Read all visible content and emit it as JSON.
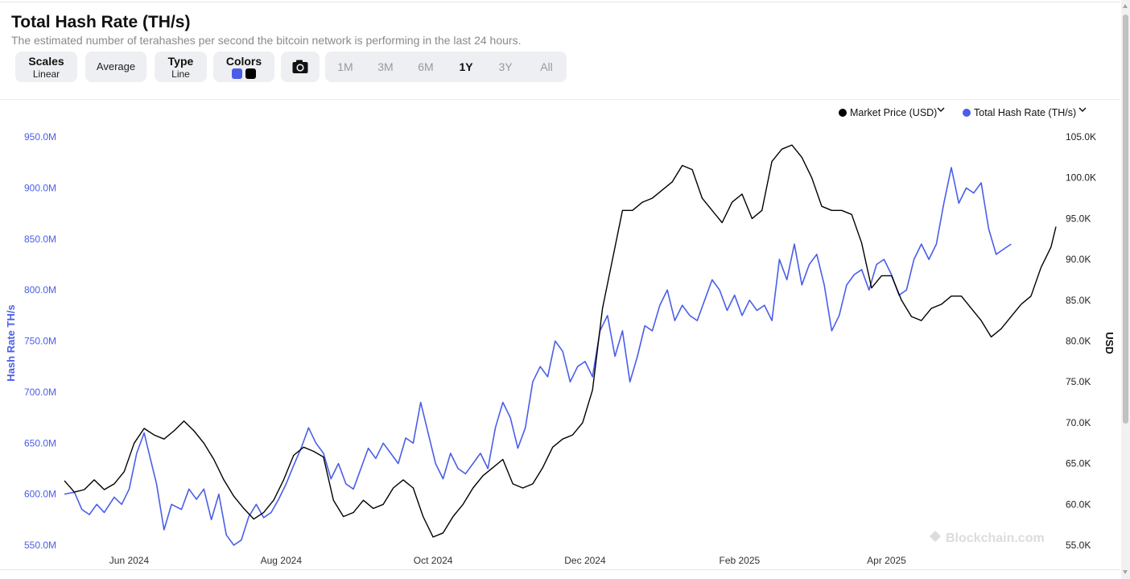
{
  "header": {
    "title": "Total Hash Rate (TH/s)",
    "subtitle": "The estimated number of terahashes per second the bitcoin network is performing in the last 24 hours."
  },
  "controls": {
    "scales_label": "Scales",
    "scales_value": "Linear",
    "average_label": "Average",
    "type_label": "Type",
    "type_value": "Line",
    "colors_label": "Colors",
    "color_swatches": [
      "#4a5ee8",
      "#000000"
    ],
    "camera_icon": "camera-icon",
    "ranges": [
      "1M",
      "3M",
      "6M",
      "1Y",
      "3Y",
      "All"
    ],
    "active_range": "1Y"
  },
  "chart_data": {
    "type": "line",
    "xlabel": "",
    "x_ticks": [
      "Jun 2024",
      "Aug 2024",
      "Oct 2024",
      "Dec 2024",
      "Feb 2025",
      "Apr 2025"
    ],
    "y_left": {
      "label": "Hash Rate TH/s",
      "range": [
        550,
        950
      ],
      "ticks": [
        "550.0M",
        "600.0M",
        "650.0M",
        "700.0M",
        "750.0M",
        "800.0M",
        "850.0M",
        "900.0M",
        "950.0M"
      ],
      "color": "#4a5ee8"
    },
    "y_right": {
      "label": "USD",
      "range": [
        55,
        105
      ],
      "ticks": [
        "55.0K",
        "60.0K",
        "65.0K",
        "70.0K",
        "75.0K",
        "80.0K",
        "85.0K",
        "90.0K",
        "95.0K",
        "100.0K",
        "105.0K"
      ],
      "color": "#000000"
    },
    "legend": {
      "position": "top-right",
      "entries": [
        {
          "name": "Market Price (USD)",
          "color": "#000000"
        },
        {
          "name": "Total Hash Rate (TH/s)",
          "color": "#4a5ee8"
        }
      ]
    },
    "grid": false,
    "watermark": "Blockchain.com",
    "series": [
      {
        "name": "Total Hash Rate (TH/s)",
        "axis": "left",
        "color": "#4a5ee8",
        "points": [
          [
            "2024-05-06",
            600
          ],
          [
            "2024-05-10",
            602
          ],
          [
            "2024-05-13",
            585
          ],
          [
            "2024-05-16",
            580
          ],
          [
            "2024-05-19",
            590
          ],
          [
            "2024-05-22",
            582
          ],
          [
            "2024-05-26",
            597
          ],
          [
            "2024-05-29",
            590
          ],
          [
            "2024-06-01",
            605
          ],
          [
            "2024-06-04",
            640
          ],
          [
            "2024-06-07",
            660
          ],
          [
            "2024-06-09",
            640
          ],
          [
            "2024-06-12",
            610
          ],
          [
            "2024-06-15",
            565
          ],
          [
            "2024-06-18",
            590
          ],
          [
            "2024-06-22",
            585
          ],
          [
            "2024-06-25",
            605
          ],
          [
            "2024-06-28",
            595
          ],
          [
            "2024-07-01",
            605
          ],
          [
            "2024-07-04",
            575
          ],
          [
            "2024-07-07",
            600
          ],
          [
            "2024-07-10",
            560
          ],
          [
            "2024-07-13",
            550
          ],
          [
            "2024-07-16",
            555
          ],
          [
            "2024-07-19",
            578
          ],
          [
            "2024-07-22",
            590
          ],
          [
            "2024-07-25",
            577
          ],
          [
            "2024-07-28",
            582
          ],
          [
            "2024-07-31",
            595
          ],
          [
            "2024-08-03",
            610
          ],
          [
            "2024-08-06",
            628
          ],
          [
            "2024-08-09",
            645
          ],
          [
            "2024-08-12",
            665
          ],
          [
            "2024-08-15",
            650
          ],
          [
            "2024-08-18",
            640
          ],
          [
            "2024-08-21",
            615
          ],
          [
            "2024-08-24",
            630
          ],
          [
            "2024-08-27",
            610
          ],
          [
            "2024-08-30",
            605
          ],
          [
            "2024-09-02",
            625
          ],
          [
            "2024-09-05",
            645
          ],
          [
            "2024-09-08",
            635
          ],
          [
            "2024-09-11",
            650
          ],
          [
            "2024-09-14",
            640
          ],
          [
            "2024-09-17",
            630
          ],
          [
            "2024-09-20",
            655
          ],
          [
            "2024-09-23",
            650
          ],
          [
            "2024-09-26",
            690
          ],
          [
            "2024-09-29",
            660
          ],
          [
            "2024-10-02",
            630
          ],
          [
            "2024-10-05",
            615
          ],
          [
            "2024-10-08",
            640
          ],
          [
            "2024-10-11",
            625
          ],
          [
            "2024-10-14",
            620
          ],
          [
            "2024-10-17",
            630
          ],
          [
            "2024-10-20",
            640
          ],
          [
            "2024-10-23",
            625
          ],
          [
            "2024-10-26",
            665
          ],
          [
            "2024-10-29",
            690
          ],
          [
            "2024-11-01",
            675
          ],
          [
            "2024-11-04",
            645
          ],
          [
            "2024-11-07",
            665
          ],
          [
            "2024-11-10",
            710
          ],
          [
            "2024-11-13",
            725
          ],
          [
            "2024-11-16",
            715
          ],
          [
            "2024-11-19",
            750
          ],
          [
            "2024-11-22",
            740
          ],
          [
            "2024-11-25",
            710
          ],
          [
            "2024-11-28",
            725
          ],
          [
            "2024-12-01",
            730
          ],
          [
            "2024-12-04",
            715
          ],
          [
            "2024-12-07",
            760
          ],
          [
            "2024-12-10",
            775
          ],
          [
            "2024-12-13",
            735
          ],
          [
            "2024-12-16",
            760
          ],
          [
            "2024-12-19",
            710
          ],
          [
            "2024-12-22",
            735
          ],
          [
            "2024-12-25",
            765
          ],
          [
            "2024-12-28",
            760
          ],
          [
            "2024-12-31",
            785
          ],
          [
            "2025-01-03",
            800
          ],
          [
            "2025-01-06",
            770
          ],
          [
            "2025-01-09",
            785
          ],
          [
            "2025-01-12",
            775
          ],
          [
            "2025-01-15",
            770
          ],
          [
            "2025-01-18",
            790
          ],
          [
            "2025-01-21",
            810
          ],
          [
            "2025-01-24",
            800
          ],
          [
            "2025-01-27",
            780
          ],
          [
            "2025-01-30",
            795
          ],
          [
            "2025-02-02",
            775
          ],
          [
            "2025-02-05",
            790
          ],
          [
            "2025-02-08",
            780
          ],
          [
            "2025-02-11",
            785
          ],
          [
            "2025-02-14",
            770
          ],
          [
            "2025-02-17",
            830
          ],
          [
            "2025-02-20",
            810
          ],
          [
            "2025-02-23",
            845
          ],
          [
            "2025-02-26",
            805
          ],
          [
            "2025-03-01",
            825
          ],
          [
            "2025-03-04",
            835
          ],
          [
            "2025-03-07",
            805
          ],
          [
            "2025-03-10",
            760
          ],
          [
            "2025-03-13",
            775
          ],
          [
            "2025-03-16",
            805
          ],
          [
            "2025-03-19",
            815
          ],
          [
            "2025-03-22",
            820
          ],
          [
            "2025-03-25",
            800
          ],
          [
            "2025-03-28",
            825
          ],
          [
            "2025-03-31",
            830
          ],
          [
            "2025-04-03",
            815
          ],
          [
            "2025-04-06",
            795
          ],
          [
            "2025-04-09",
            800
          ],
          [
            "2025-04-12",
            830
          ],
          [
            "2025-04-15",
            845
          ],
          [
            "2025-04-18",
            830
          ],
          [
            "2025-04-21",
            845
          ],
          [
            "2025-04-24",
            885
          ],
          [
            "2025-04-27",
            920
          ],
          [
            "2025-04-30",
            885
          ],
          [
            "2025-05-03",
            900
          ],
          [
            "2025-05-06",
            895
          ],
          [
            "2025-05-09",
            905
          ],
          [
            "2025-05-12",
            860
          ],
          [
            "2025-05-15",
            835
          ],
          [
            "2025-05-18",
            840
          ],
          [
            "2025-05-21",
            845
          ]
        ]
      },
      {
        "name": "Market Price (USD)",
        "axis": "right",
        "color": "#000000",
        "points": [
          [
            "2024-05-06",
            62.9
          ],
          [
            "2024-05-10",
            61.5
          ],
          [
            "2024-05-14",
            61.8
          ],
          [
            "2024-05-18",
            63.0
          ],
          [
            "2024-05-22",
            61.8
          ],
          [
            "2024-05-26",
            62.5
          ],
          [
            "2024-05-30",
            64.0
          ],
          [
            "2024-06-03",
            67.5
          ],
          [
            "2024-06-07",
            69.3
          ],
          [
            "2024-06-11",
            68.5
          ],
          [
            "2024-06-15",
            68.0
          ],
          [
            "2024-06-19",
            69.0
          ],
          [
            "2024-06-23",
            70.2
          ],
          [
            "2024-06-27",
            69.0
          ],
          [
            "2024-07-01",
            67.5
          ],
          [
            "2024-07-05",
            65.5
          ],
          [
            "2024-07-09",
            63.0
          ],
          [
            "2024-07-13",
            61.0
          ],
          [
            "2024-07-17",
            59.5
          ],
          [
            "2024-07-21",
            58.2
          ],
          [
            "2024-07-25",
            59.0
          ],
          [
            "2024-07-29",
            60.5
          ],
          [
            "2024-08-02",
            63.0
          ],
          [
            "2024-08-06",
            66.0
          ],
          [
            "2024-08-10",
            67.0
          ],
          [
            "2024-08-14",
            66.5
          ],
          [
            "2024-08-18",
            65.8
          ],
          [
            "2024-08-22",
            60.5
          ],
          [
            "2024-08-26",
            58.5
          ],
          [
            "2024-08-30",
            59.0
          ],
          [
            "2024-09-03",
            60.5
          ],
          [
            "2024-09-07",
            59.5
          ],
          [
            "2024-09-11",
            60.0
          ],
          [
            "2024-09-15",
            62.0
          ],
          [
            "2024-09-19",
            63.0
          ],
          [
            "2024-09-23",
            62.0
          ],
          [
            "2024-09-27",
            58.5
          ],
          [
            "2024-10-01",
            56.0
          ],
          [
            "2024-10-05",
            56.5
          ],
          [
            "2024-10-09",
            58.5
          ],
          [
            "2024-10-13",
            60.0
          ],
          [
            "2024-10-17",
            62.0
          ],
          [
            "2024-10-21",
            63.5
          ],
          [
            "2024-10-25",
            64.5
          ],
          [
            "2024-10-29",
            65.5
          ],
          [
            "2024-11-02",
            62.5
          ],
          [
            "2024-11-06",
            62.0
          ],
          [
            "2024-11-10",
            62.5
          ],
          [
            "2024-11-14",
            64.5
          ],
          [
            "2024-11-18",
            67.0
          ],
          [
            "2024-11-22",
            68.0
          ],
          [
            "2024-11-26",
            68.5
          ],
          [
            "2024-11-30",
            70.0
          ],
          [
            "2024-12-04",
            74.0
          ],
          [
            "2024-12-08",
            84.0
          ],
          [
            "2024-12-12",
            90.0
          ],
          [
            "2024-12-16",
            96.0
          ],
          [
            "2024-12-20",
            96.0
          ],
          [
            "2024-12-24",
            97.0
          ],
          [
            "2024-12-28",
            97.5
          ],
          [
            "2025-01-01",
            98.5
          ],
          [
            "2025-01-05",
            99.5
          ],
          [
            "2025-01-09",
            101.5
          ],
          [
            "2025-01-13",
            101.0
          ],
          [
            "2025-01-17",
            97.5
          ],
          [
            "2025-01-21",
            96.0
          ],
          [
            "2025-01-25",
            94.5
          ],
          [
            "2025-01-29",
            97.0
          ],
          [
            "2025-02-02",
            98.0
          ],
          [
            "2025-02-06",
            95.0
          ],
          [
            "2025-02-10",
            96.0
          ],
          [
            "2025-02-14",
            102.0
          ],
          [
            "2025-02-18",
            103.5
          ],
          [
            "2025-02-22",
            104.0
          ],
          [
            "2025-02-26",
            102.5
          ],
          [
            "2025-03-02",
            100.0
          ],
          [
            "2025-03-06",
            96.5
          ],
          [
            "2025-03-10",
            96.0
          ],
          [
            "2025-03-14",
            96.0
          ],
          [
            "2025-03-18",
            95.5
          ],
          [
            "2025-03-22",
            92.0
          ],
          [
            "2025-03-26",
            86.5
          ],
          [
            "2025-03-30",
            88.0
          ],
          [
            "2025-04-03",
            88.0
          ],
          [
            "2025-04-07",
            85.0
          ],
          [
            "2025-04-11",
            83.0
          ],
          [
            "2025-04-15",
            82.5
          ],
          [
            "2025-04-19",
            84.0
          ],
          [
            "2025-04-23",
            84.5
          ],
          [
            "2025-04-27",
            85.5
          ],
          [
            "2025-05-01",
            85.5
          ],
          [
            "2025-05-05",
            84.0
          ],
          [
            "2025-05-09",
            82.5
          ],
          [
            "2025-05-13",
            80.5
          ],
          [
            "2025-05-17",
            81.5
          ],
          [
            "2025-05-21",
            83.0
          ],
          [
            "2025-05-25",
            84.5
          ],
          [
            "2025-05-29",
            85.5
          ],
          [
            "2025-06-02",
            89.0
          ],
          [
            "2025-06-06",
            91.5
          ],
          [
            "2025-06-08",
            94.0
          ]
        ]
      }
    ]
  }
}
